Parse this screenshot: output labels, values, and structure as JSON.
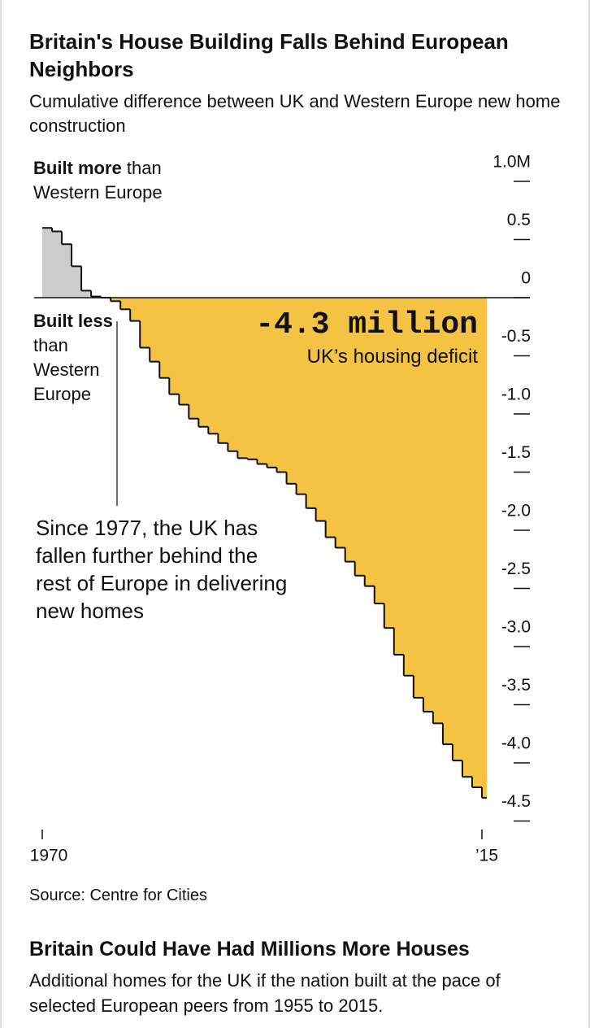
{
  "chart_data": {
    "type": "step-area",
    "title": "Britain's House Building Falls Behind European Neighbors",
    "subtitle": "Cumulative difference between UK and Western Europe new home construction",
    "x": [
      1970,
      1971,
      1972,
      1973,
      1974,
      1975,
      1976,
      1977,
      1978,
      1979,
      1980,
      1981,
      1982,
      1983,
      1984,
      1985,
      1986,
      1987,
      1988,
      1989,
      1990,
      1991,
      1992,
      1993,
      1994,
      1995,
      1996,
      1997,
      1998,
      1999,
      2000,
      2001,
      2002,
      2003,
      2004,
      2005,
      2006,
      2007,
      2008,
      2009,
      2010,
      2011,
      2012,
      2013,
      2014,
      2015
    ],
    "values": [
      0.6,
      0.57,
      0.46,
      0.27,
      0.06,
      0.01,
      0,
      -0.03,
      -0.1,
      -0.2,
      -0.43,
      -0.55,
      -0.69,
      -0.83,
      -0.92,
      -1.04,
      -1.11,
      -1.17,
      -1.25,
      -1.32,
      -1.38,
      -1.39,
      -1.43,
      -1.46,
      -1.5,
      -1.6,
      -1.69,
      -1.81,
      -1.92,
      -2.06,
      -2.15,
      -2.27,
      -2.39,
      -2.48,
      -2.63,
      -2.84,
      -3.07,
      -3.25,
      -3.44,
      -3.56,
      -3.66,
      -3.84,
      -3.98,
      -4.12,
      -4.21,
      -4.3
    ],
    "positive_color": "#cccccc",
    "negative_color": "#f5c343",
    "xlim": [
      1970,
      2015
    ],
    "xticks": [
      1970,
      {
        "value": 2015,
        "label": "’15"
      }
    ],
    "ylim": [
      -4.5,
      1
    ],
    "yticks": [
      {
        "value": 1,
        "label": "1.0M"
      },
      0.5,
      0,
      -0.5,
      {
        "value": -1,
        "label": "-1.0"
      },
      -1.5,
      {
        "value": -2,
        "label": "-2.0"
      },
      -2.5,
      {
        "value": -3,
        "label": "-3.0"
      },
      -3.5,
      {
        "value": -4,
        "label": "-4.0"
      },
      -4.5
    ],
    "annotations": {
      "built_more_bold": "Built more",
      "built_more_rest": "than Western Europe",
      "built_less_bold": "Built less",
      "built_less_rest": "than Western Europe",
      "deficit_value": "-4.3 million",
      "deficit_label": "UK’s housing deficit",
      "note": "Since 1977, the UK has fallen further behind the rest of Europe in delivering new homes"
    },
    "source": "Source: Centre for Cities"
  },
  "next_section": {
    "title": "Britain Could Have Had Millions More Houses",
    "subtitle": "Additional homes for the UK if the nation built at the pace of selected European peers from 1955 to 2015."
  }
}
